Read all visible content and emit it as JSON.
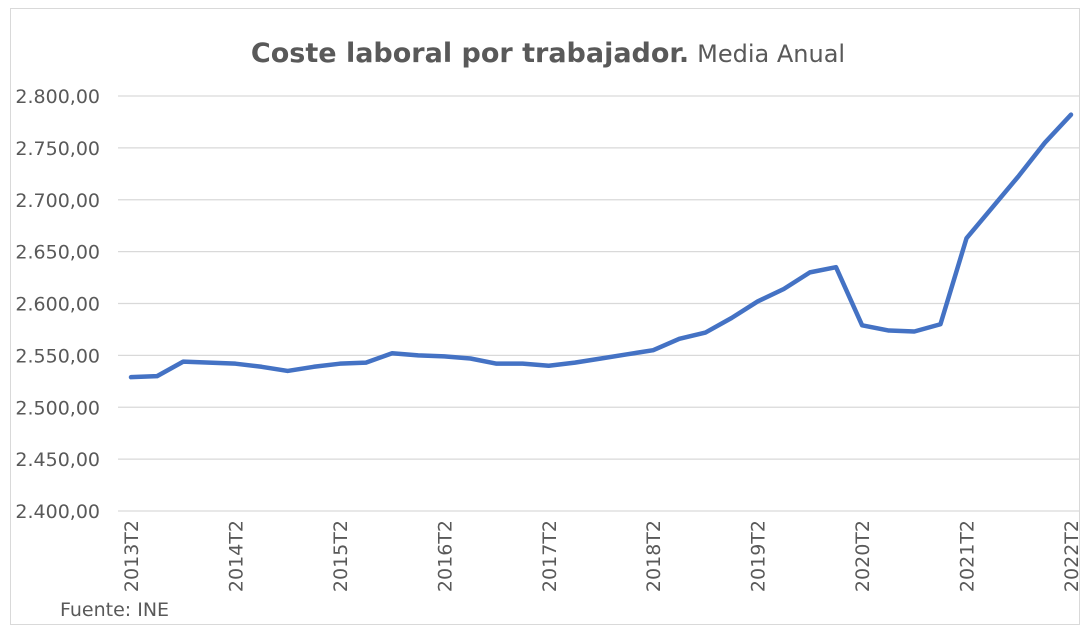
{
  "chart_data": {
    "type": "line",
    "title": "Coste laboral por trabajador.",
    "subtitle": "Media Anual",
    "source": "Fuente: INE",
    "categories": [
      "2013T2",
      null,
      null,
      null,
      "2014T2",
      null,
      null,
      null,
      "2015T2",
      null,
      null,
      null,
      "2016T2",
      null,
      null,
      null,
      "2017T2",
      null,
      null,
      null,
      "2018T2",
      null,
      null,
      null,
      "2019T2",
      null,
      null,
      null,
      "2020T2",
      null,
      null,
      null,
      "2021T2",
      null,
      null,
      null,
      "2022T2"
    ],
    "series": [
      {
        "name": "Coste laboral por trabajador",
        "color": "#4472c4",
        "values": [
          2529,
          2530,
          2544,
          2543,
          2542,
          2539,
          2535,
          2539,
          2542,
          2543,
          2552,
          2550,
          2549,
          2547,
          2542,
          2542,
          2540,
          2543,
          2547,
          2551,
          2555,
          2566,
          2572,
          2586,
          2602,
          2614,
          2630,
          2635,
          2579,
          2574,
          2573,
          2580,
          2663,
          2693,
          2723,
          2755,
          2782
        ]
      }
    ],
    "ylim": [
      2400,
      2800
    ],
    "yticks": [
      {
        "value": 2400,
        "label": "2.400,00"
      },
      {
        "value": 2450,
        "label": "2.450,00"
      },
      {
        "value": 2500,
        "label": "2.500,00"
      },
      {
        "value": 2550,
        "label": "2.550,00"
      },
      {
        "value": 2600,
        "label": "2.600,00"
      },
      {
        "value": 2650,
        "label": "2.650,00"
      },
      {
        "value": 2700,
        "label": "2.700,00"
      },
      {
        "value": 2750,
        "label": "2.750,00"
      },
      {
        "value": 2800,
        "label": "2.800,00"
      }
    ],
    "grid": true
  }
}
